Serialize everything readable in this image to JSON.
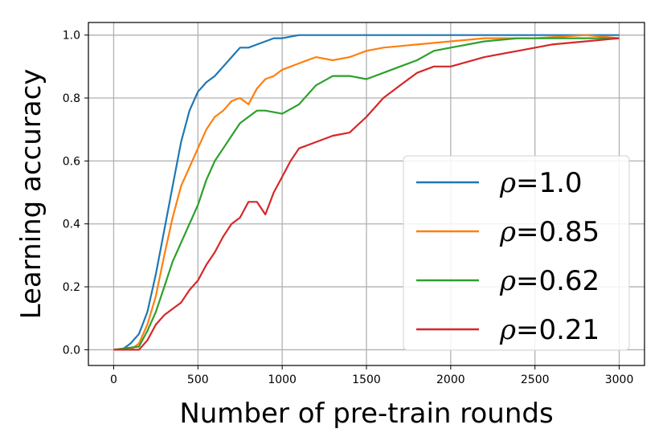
{
  "chart_data": {
    "type": "line",
    "title": "",
    "xlabel": "Number of pre-train rounds",
    "ylabel": "Learning accuracy",
    "xlim": [
      -150,
      3150
    ],
    "ylim": [
      -0.05,
      1.04
    ],
    "xticks": [
      0,
      500,
      1000,
      1500,
      2000,
      2500,
      3000
    ],
    "yticks": [
      0.0,
      0.2,
      0.4,
      0.6,
      0.8,
      1.0
    ],
    "xtick_labels": [
      "0",
      "500",
      "1000",
      "1500",
      "2000",
      "2500",
      "3000"
    ],
    "ytick_labels": [
      "0.0",
      "0.2",
      "0.4",
      "0.6",
      "0.8",
      "1.0"
    ],
    "grid": true,
    "legend_position": "lower-right",
    "series": [
      {
        "name": "1.0",
        "legend_symbol": "ρ",
        "legend_text": "=1.0",
        "color": "#1f77b4",
        "x": [
          0,
          50,
          100,
          150,
          200,
          250,
          300,
          350,
          400,
          450,
          500,
          550,
          600,
          650,
          700,
          750,
          800,
          850,
          900,
          950,
          1000,
          1100,
          1200,
          1300,
          1500,
          1700,
          2000,
          2500,
          3000
        ],
        "y": [
          0.0,
          0.0,
          0.02,
          0.05,
          0.12,
          0.24,
          0.38,
          0.52,
          0.66,
          0.76,
          0.82,
          0.85,
          0.87,
          0.9,
          0.93,
          0.96,
          0.96,
          0.97,
          0.98,
          0.99,
          0.99,
          1.0,
          1.0,
          1.0,
          1.0,
          1.0,
          1.0,
          1.0,
          1.0
        ]
      },
      {
        "name": "0.85",
        "legend_symbol": "ρ",
        "legend_text": "=0.85",
        "color": "#ff7f0e",
        "x": [
          0,
          100,
          150,
          200,
          250,
          300,
          350,
          400,
          450,
          500,
          550,
          600,
          650,
          700,
          750,
          800,
          850,
          900,
          950,
          1000,
          1100,
          1200,
          1300,
          1400,
          1500,
          1600,
          1800,
          2000,
          2200,
          2500,
          2800,
          3000
        ],
        "y": [
          0.0,
          0.0,
          0.02,
          0.08,
          0.17,
          0.3,
          0.42,
          0.52,
          0.58,
          0.64,
          0.7,
          0.74,
          0.76,
          0.79,
          0.8,
          0.78,
          0.83,
          0.86,
          0.87,
          0.89,
          0.91,
          0.93,
          0.92,
          0.93,
          0.95,
          0.96,
          0.97,
          0.98,
          0.99,
          0.99,
          1.0,
          0.99
        ]
      },
      {
        "name": "0.62",
        "legend_symbol": "ρ",
        "legend_text": "=0.62",
        "color": "#2ca02c",
        "x": [
          0,
          150,
          200,
          250,
          300,
          350,
          400,
          450,
          500,
          550,
          600,
          650,
          700,
          750,
          800,
          850,
          900,
          1000,
          1100,
          1200,
          1300,
          1400,
          1500,
          1600,
          1700,
          1800,
          1900,
          2000,
          2200,
          2400,
          2600,
          2800,
          3000
        ],
        "y": [
          0.0,
          0.01,
          0.06,
          0.12,
          0.2,
          0.28,
          0.34,
          0.4,
          0.46,
          0.54,
          0.6,
          0.64,
          0.68,
          0.72,
          0.74,
          0.76,
          0.76,
          0.75,
          0.78,
          0.84,
          0.87,
          0.87,
          0.86,
          0.88,
          0.9,
          0.92,
          0.95,
          0.96,
          0.98,
          0.99,
          0.99,
          0.99,
          0.99
        ]
      },
      {
        "name": "0.21",
        "legend_symbol": "ρ",
        "legend_text": "=0.21",
        "color": "#d62728",
        "x": [
          0,
          150,
          200,
          250,
          300,
          350,
          400,
          450,
          500,
          550,
          600,
          650,
          700,
          750,
          800,
          850,
          900,
          950,
          1000,
          1050,
          1100,
          1200,
          1300,
          1400,
          1500,
          1600,
          1700,
          1800,
          1900,
          2000,
          2200,
          2400,
          2600,
          2800,
          3000
        ],
        "y": [
          0.0,
          0.0,
          0.03,
          0.08,
          0.11,
          0.13,
          0.15,
          0.19,
          0.22,
          0.27,
          0.31,
          0.36,
          0.4,
          0.42,
          0.47,
          0.47,
          0.43,
          0.5,
          0.55,
          0.6,
          0.64,
          0.66,
          0.68,
          0.69,
          0.74,
          0.8,
          0.84,
          0.88,
          0.9,
          0.9,
          0.93,
          0.95,
          0.97,
          0.98,
          0.99
        ]
      }
    ]
  }
}
